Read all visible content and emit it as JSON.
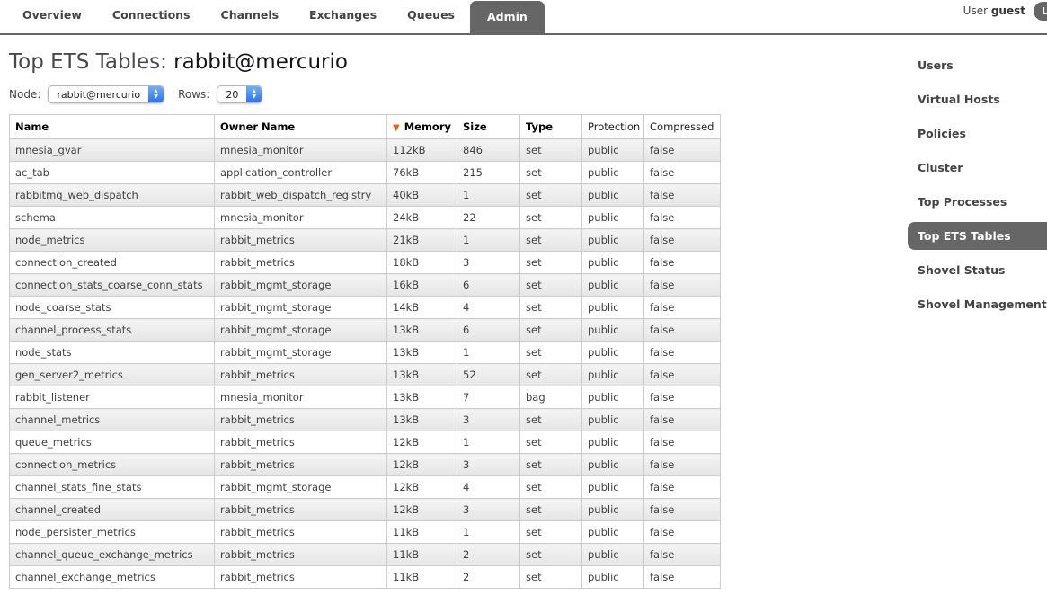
{
  "nav": {
    "tabs": [
      {
        "label": "Overview",
        "active": false
      },
      {
        "label": "Connections",
        "active": false
      },
      {
        "label": "Channels",
        "active": false
      },
      {
        "label": "Exchanges",
        "active": false
      },
      {
        "label": "Queues",
        "active": false
      },
      {
        "label": "Admin",
        "active": true
      }
    ]
  },
  "user": {
    "prefix": "User",
    "name": "guest",
    "logout_label": "Log out"
  },
  "page": {
    "title_prefix": "Top ETS Tables:",
    "title_name": "rabbit@mercurio"
  },
  "filters": {
    "node_label": "Node:",
    "node_value": "rabbit@mercurio",
    "rows_label": "Rows:",
    "rows_value": "20"
  },
  "table": {
    "columns": [
      {
        "label": "Name"
      },
      {
        "label": "Owner Name"
      },
      {
        "label": "Memory",
        "sorted": "desc"
      },
      {
        "label": "Size"
      },
      {
        "label": "Type"
      },
      {
        "label": "Protection"
      },
      {
        "label": "Compressed"
      }
    ],
    "rows": [
      [
        "mnesia_gvar",
        "mnesia_monitor",
        "112kB",
        "846",
        "set",
        "public",
        "false"
      ],
      [
        "ac_tab",
        "application_controller",
        "76kB",
        "215",
        "set",
        "public",
        "false"
      ],
      [
        "rabbitmq_web_dispatch",
        "rabbit_web_dispatch_registry",
        "40kB",
        "1",
        "set",
        "public",
        "false"
      ],
      [
        "schema",
        "mnesia_monitor",
        "24kB",
        "22",
        "set",
        "public",
        "false"
      ],
      [
        "node_metrics",
        "rabbit_metrics",
        "21kB",
        "1",
        "set",
        "public",
        "false"
      ],
      [
        "connection_created",
        "rabbit_metrics",
        "18kB",
        "3",
        "set",
        "public",
        "false"
      ],
      [
        "connection_stats_coarse_conn_stats",
        "rabbit_mgmt_storage",
        "16kB",
        "6",
        "set",
        "public",
        "false"
      ],
      [
        "node_coarse_stats",
        "rabbit_mgmt_storage",
        "14kB",
        "4",
        "set",
        "public",
        "false"
      ],
      [
        "channel_process_stats",
        "rabbit_mgmt_storage",
        "13kB",
        "6",
        "set",
        "public",
        "false"
      ],
      [
        "node_stats",
        "rabbit_mgmt_storage",
        "13kB",
        "1",
        "set",
        "public",
        "false"
      ],
      [
        "gen_server2_metrics",
        "rabbit_metrics",
        "13kB",
        "52",
        "set",
        "public",
        "false"
      ],
      [
        "rabbit_listener",
        "mnesia_monitor",
        "13kB",
        "7",
        "bag",
        "public",
        "false"
      ],
      [
        "channel_metrics",
        "rabbit_metrics",
        "13kB",
        "3",
        "set",
        "public",
        "false"
      ],
      [
        "queue_metrics",
        "rabbit_metrics",
        "12kB",
        "1",
        "set",
        "public",
        "false"
      ],
      [
        "connection_metrics",
        "rabbit_metrics",
        "12kB",
        "3",
        "set",
        "public",
        "false"
      ],
      [
        "channel_stats_fine_stats",
        "rabbit_mgmt_storage",
        "12kB",
        "4",
        "set",
        "public",
        "false"
      ],
      [
        "channel_created",
        "rabbit_metrics",
        "12kB",
        "3",
        "set",
        "public",
        "false"
      ],
      [
        "node_persister_metrics",
        "rabbit_metrics",
        "11kB",
        "1",
        "set",
        "public",
        "false"
      ],
      [
        "channel_queue_exchange_metrics",
        "rabbit_metrics",
        "11kB",
        "2",
        "set",
        "public",
        "false"
      ],
      [
        "channel_exchange_metrics",
        "rabbit_metrics",
        "11kB",
        "2",
        "set",
        "public",
        "false"
      ]
    ]
  },
  "sidebar": {
    "items": [
      {
        "label": "Users",
        "active": false
      },
      {
        "label": "Virtual Hosts",
        "active": false
      },
      {
        "label": "Policies",
        "active": false
      },
      {
        "label": "Cluster",
        "active": false
      },
      {
        "label": "Top Processes",
        "active": false
      },
      {
        "label": "Top ETS Tables",
        "active": true
      },
      {
        "label": "Shovel Status",
        "active": false
      },
      {
        "label": "Shovel Management",
        "active": false
      }
    ]
  },
  "icons": {
    "sort_desc": "▼",
    "stepper_up": "▲",
    "stepper_down": "▼"
  },
  "colors": {
    "active_tab_bg": "#666666",
    "sort_arrow": "#ff5500",
    "select_accent": "#2a71ee",
    "table_border": "#cccccc"
  }
}
